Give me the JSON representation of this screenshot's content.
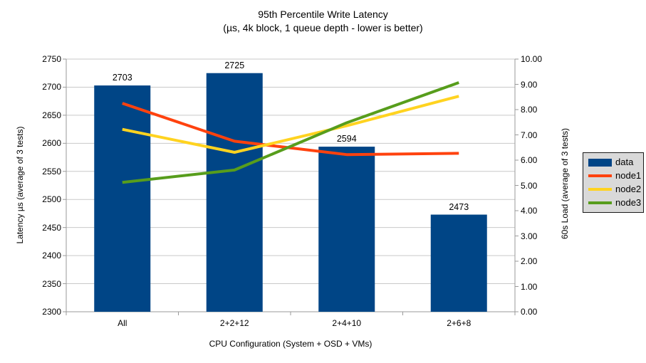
{
  "chart_data": {
    "type": "bar+line",
    "title": "95th Percentile Write Latency",
    "subtitle": "(µs, 4k block, 1 queue depth - lower is better)",
    "categories": [
      "All",
      "2+2+12",
      "2+4+10",
      "2+6+8"
    ],
    "bar_series": {
      "name": "data",
      "color": "#004586",
      "axis": "left",
      "values": [
        2703,
        2725,
        2594,
        2473
      ],
      "data_labels": [
        "2703",
        "2725",
        "2594",
        "2473"
      ]
    },
    "line_series": [
      {
        "name": "node1",
        "color": "#ff420e",
        "axis": "right",
        "values": [
          8.25,
          6.75,
          6.22,
          6.27
        ]
      },
      {
        "name": "node2",
        "color": "#ffd320",
        "axis": "right",
        "values": [
          7.22,
          6.31,
          7.36,
          8.53
        ]
      },
      {
        "name": "node3",
        "color": "#579d1c",
        "axis": "right",
        "values": [
          5.12,
          5.61,
          7.48,
          9.07
        ]
      }
    ],
    "left_axis": {
      "title": "Latency µs (average of 3 tests)",
      "min": 2300,
      "max": 2750,
      "step": 50,
      "tick_labels": [
        "2750",
        "2700",
        "2650",
        "2600",
        "2550",
        "2500",
        "2450",
        "2400",
        "2350",
        "2300"
      ]
    },
    "right_axis": {
      "title": "60s Load (average of 3 tests)",
      "min": 0,
      "max": 10,
      "step": 1,
      "tick_labels": [
        "10.00",
        "9.00",
        "8.00",
        "7.00",
        "6.00",
        "5.00",
        "4.00",
        "3.00",
        "2.00",
        "1.00",
        "0.00"
      ]
    },
    "x_axis": {
      "title": "CPU Configuration (System + OSD + VMs)"
    },
    "legend": {
      "position": "right",
      "entries": [
        "data",
        "node1",
        "node2",
        "node3"
      ]
    },
    "grid": true,
    "colors": {
      "gridline": "#c9c9c9",
      "axis": "#9a9a9a",
      "text": "#000000",
      "legend_bg": "#d9d9d9",
      "legend_border": "#1a1a1a"
    }
  }
}
